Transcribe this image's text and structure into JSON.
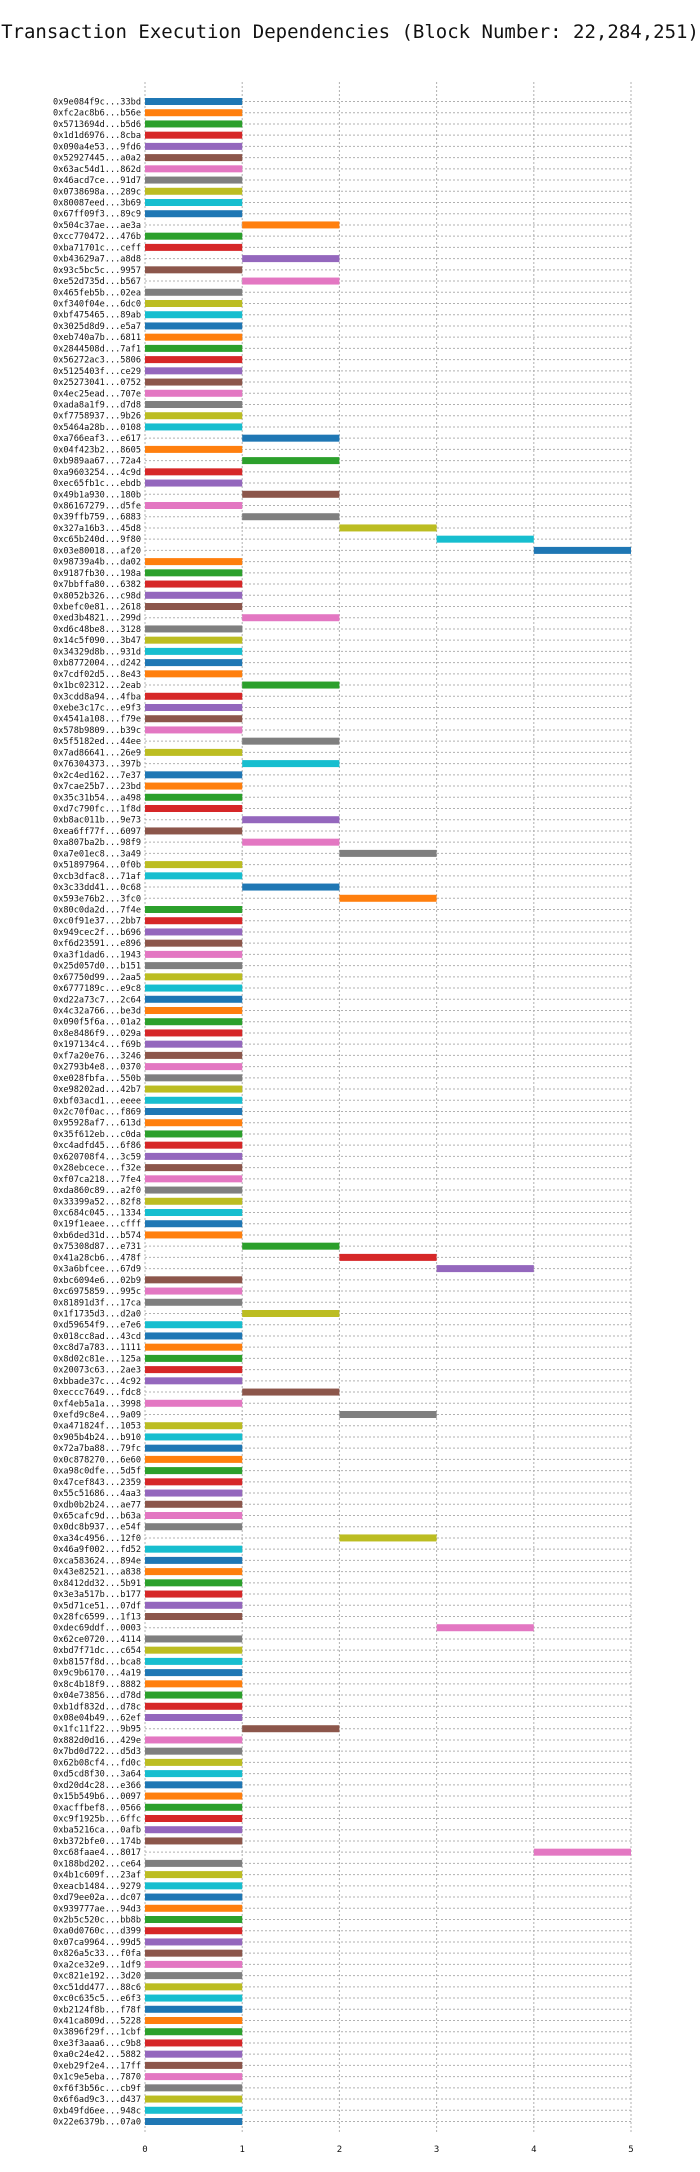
{
  "chart_data": {
    "type": "gantt",
    "title": "Transaction Execution Dependencies (Block Number: 22,284,251)",
    "xlabel": "",
    "ylabel": "",
    "xlim": [
      0,
      5
    ],
    "x_ticks": [
      "0",
      "1",
      "2",
      "3",
      "4",
      "5"
    ],
    "grid": true,
    "palette": [
      "#1f77b4",
      "#ff7f0e",
      "#2ca02c",
      "#d62728",
      "#9467bd",
      "#8c564b",
      "#e377c2",
      "#7f7f7f",
      "#bcbd22",
      "#17becf"
    ],
    "transactions": [
      "0x9e084f9c...33bd",
      "0xfc2ac8b6...b56e",
      "0x5713694d...b5d6",
      "0x1d1d6976...8cba",
      "0x090a4e53...9fd6",
      "0x52927445...a0a2",
      "0x63ac54d1...862d",
      "0x46acd7ce...91d7",
      "0x0738698a...289c",
      "0x80087eed...3b69",
      "0x67ff09f3...89c9",
      "0x504c37ae...ae3a",
      "0xcc770472...476b",
      "0xba71701c...ceff",
      "0xb43629a7...a8d8",
      "0x93c5bc5c...9957",
      "0xe52d735d...b567",
      "0x465feb5b...02ea",
      "0xf340f04e...6dc0",
      "0xbf475465...89ab",
      "0x3025d8d9...e5a7",
      "0xeb740a7b...6811",
      "0x2844508d...7af1",
      "0x56272ac3...5806",
      "0x5125403f...ce29",
      "0x25273041...0752",
      "0x4ec25ead...707e",
      "0xada8a1f9...d7d8",
      "0xf7758937...9b26",
      "0x5464a28b...0108",
      "0xa766eaf3...e617",
      "0x04f423b2...8605",
      "0xb989aa67...72a4",
      "0xa9603254...4c9d",
      "0xec65fb1c...ebdb",
      "0x49b1a930...180b",
      "0x86167279...d5fe",
      "0x39ffb759...6883",
      "0x327a16b3...45d8",
      "0xc65b240d...9f80",
      "0x03e80018...af20",
      "0x98739a4b...da02",
      "0x9187fb30...198a",
      "0x7bbffa80...6382",
      "0x8052b326...c98d",
      "0xbefc0e81...2618",
      "0xed3b4821...299d",
      "0xd6c48be8...3128",
      "0x14c5f090...3b47",
      "0x34329d8b...931d",
      "0xb8772004...d242",
      "0x7cdf02d5...8e43",
      "0x1bc02312...2eab",
      "0x3cdd8a94...4fba",
      "0xebe3c17c...e9f3",
      "0x4541a108...f79e",
      "0x578b9809...b39c",
      "0x5f5182ed...44ee",
      "0x7ad86641...26e9",
      "0x76304373...397b",
      "0x2c4ed162...7e37",
      "0x7cae25b7...23bd",
      "0x35c31b54...a498",
      "0xd7c790fc...1f8d",
      "0xb8ac011b...9e73",
      "0xea6ff77f...6097",
      "0xa807ba2b...98f9",
      "0xa7e01ec8...3a49",
      "0x51897964...0f0b",
      "0xcb3dfac8...71af",
      "0x3c33dd41...0c68",
      "0x593e76b2...3fc0",
      "0x80c0da2d...7f4e",
      "0xc0f91e37...2bb7",
      "0x949cec2f...b696",
      "0xf6d23591...e896",
      "0xa3f1dad6...1943",
      "0x25d057d0...b151",
      "0x67750d99...2aa5",
      "0x6777189c...e9c8",
      "0xd22a73c7...2c64",
      "0x4c32a766...be3d",
      "0x090f5f6a...01a2",
      "0x8e8486f9...029a",
      "0x197134c4...f69b",
      "0xf7a20e76...3246",
      "0x2793b4e8...0370",
      "0xe028fbfa...550b",
      "0xe98202ad...42b7",
      "0xbf03acd1...eeee",
      "0x2c70f0ac...f869",
      "0x95928af7...613d",
      "0x35f612eb...c0da",
      "0xc4adfd45...6f86",
      "0x620708f4...3c59",
      "0x28ebcece...f32e",
      "0xf07ca218...7fe4",
      "0xda860c89...a2f0",
      "0x33399a52...82f8",
      "0xc684c045...1334",
      "0x19f1eaee...cfff",
      "0xb6ded31d...b574",
      "0x75308d87...e731",
      "0x41a28cb6...478f",
      "0x3a6bfcee...67d9",
      "0xbc6094e6...02b9",
      "0xc6975859...995c",
      "0x81891d3f...17ca",
      "0x1f1735d3...d2a0",
      "0xd59654f9...e7e6",
      "0x018cc8ad...43cd",
      "0xc8d7a783...1111",
      "0x8d02c81e...125a",
      "0x20073c63...2ae3",
      "0xbbade37c...4c92",
      "0xeccc7649...fdc8",
      "0xf4eb5a1a...3998",
      "0xefd9c8e4...9a09",
      "0xa471824f...1053",
      "0x905b4b24...b910",
      "0x72a7ba88...79fc",
      "0x0c878270...6e60",
      "0xa98c0dfe...5d5f",
      "0x47cef843...2359",
      "0x55c51686...4aa3",
      "0xdb0b2b24...ae77",
      "0x65cafc9d...b63a",
      "0x0dc8b937...e54f",
      "0xa34c4956...12f0",
      "0x46a9f002...fd52",
      "0xca583624...894e",
      "0x43e82521...a838",
      "0x8412dd32...5b91",
      "0x3e3a517b...b177",
      "0x5d71ce51...07df",
      "0x28fc6599...1f13",
      "0xdec69ddf...0003",
      "0x62ce0720...4114",
      "0xbd7f71dc...c654",
      "0xb8157f8d...bca8",
      "0x9c9b6170...4a19",
      "0x8c4b18f9...8882",
      "0x04e73856...d78d",
      "0xb1df832d...d78c",
      "0x08e04b49...62ef",
      "0x1fc11f22...9b95",
      "0x882d0d16...429e",
      "0x7bd0d722...d5d3",
      "0x62b08cf4...fd0c",
      "0xd5cd8f30...3a64",
      "0xd20d4c28...e366",
      "0x15b549b6...0097",
      "0xacffbef8...0566",
      "0xc9f1925b...6ffc",
      "0xba5216ca...0afb",
      "0xb372bfe0...174b",
      "0xc68faae4...8017",
      "0x188bd202...ce64",
      "0x4b1c609f...23af",
      "0xeacb1484...9279",
      "0xd79ee02a...dc07",
      "0x939777ae...94d3",
      "0x2b5c520c...bb8b",
      "0xa0d0760c...d399",
      "0x07ca9964...99d5",
      "0x826a5c33...f0fa",
      "0xa2ce32e9...1df9",
      "0xc821e192...3d20",
      "0xc51dd477...88c6",
      "0xc0c635c5...e6f3",
      "0xb2124f8b...f78f",
      "0x41ca809d...5228",
      "0x3896f29f...1cbf",
      "0xe3f3aaa6...c9b8",
      "0xa0c24e42...5882",
      "0xeb29f2e4...17ff",
      "0x1c9e5eba...7870",
      "0xf6f3b56c...cb9f",
      "0x6f6ad9c3...d437",
      "0xb49fd6ee...948c",
      "0x22e6379b...07a0"
    ],
    "starts": [
      0,
      0,
      0,
      0,
      0,
      0,
      0,
      0,
      0,
      0,
      0,
      1,
      0,
      0,
      1,
      0,
      1,
      0,
      0,
      0,
      0,
      0,
      0,
      0,
      0,
      0,
      0,
      0,
      0,
      0,
      1,
      0,
      1,
      0,
      0,
      1,
      0,
      1,
      2,
      3,
      4,
      0,
      0,
      0,
      0,
      0,
      1,
      0,
      0,
      0,
      0,
      0,
      1,
      0,
      0,
      0,
      0,
      1,
      0,
      1,
      0,
      0,
      0,
      0,
      1,
      0,
      1,
      2,
      0,
      0,
      1,
      2,
      0,
      0,
      0,
      0,
      0,
      0,
      0,
      0,
      0,
      0,
      0,
      0,
      0,
      0,
      0,
      0,
      0,
      0,
      0,
      0,
      0,
      0,
      0,
      0,
      0,
      0,
      0,
      0,
      0,
      0,
      1,
      2,
      3,
      0,
      0,
      0,
      1,
      0,
      0,
      0,
      0,
      0,
      0,
      1,
      0,
      2,
      0,
      0,
      0,
      0,
      0,
      0,
      0,
      0,
      0,
      0,
      2,
      0,
      0,
      0,
      0,
      0,
      0,
      0,
      3,
      0,
      0,
      0,
      0,
      0,
      0,
      0,
      0,
      1,
      0,
      0,
      0,
      0,
      0,
      0,
      0,
      0,
      0,
      0,
      4,
      0,
      0,
      0,
      0,
      0,
      0,
      0,
      0,
      0,
      0,
      0,
      0,
      0,
      0,
      0,
      0,
      0,
      0,
      0,
      0,
      0,
      0,
      0,
      0
    ],
    "durations": [
      1,
      1,
      1,
      1,
      1,
      1,
      1,
      1,
      1,
      1,
      1,
      1,
      1,
      1,
      1,
      1,
      1,
      1,
      1,
      1,
      1,
      1,
      1,
      1,
      1,
      1,
      1,
      1,
      1,
      1,
      1,
      1,
      1,
      1,
      1,
      1,
      1,
      1,
      1,
      1,
      1,
      1,
      1,
      1,
      1,
      1,
      1,
      1,
      1,
      1,
      1,
      1,
      1,
      1,
      1,
      1,
      1,
      1,
      1,
      1,
      1,
      1,
      1,
      1,
      1,
      1,
      1,
      1,
      1,
      1,
      1,
      1,
      1,
      1,
      1,
      1,
      1,
      1,
      1,
      1,
      1,
      1,
      1,
      1,
      1,
      1,
      1,
      1,
      1,
      1,
      1,
      1,
      1,
      1,
      1,
      1,
      1,
      1,
      1,
      1,
      1,
      1,
      1,
      1,
      1,
      1,
      1,
      1,
      1,
      1,
      1,
      1,
      1,
      1,
      1,
      1,
      1,
      1,
      1,
      1,
      1,
      1,
      1,
      1,
      1,
      1,
      1,
      1,
      1,
      1,
      1,
      1,
      1,
      1,
      1,
      1,
      1,
      1,
      1,
      1,
      1,
      1,
      1,
      1,
      1,
      1,
      1,
      1,
      1,
      1,
      1,
      1,
      1,
      1,
      1,
      1,
      1,
      1,
      1,
      1,
      1,
      1,
      1,
      1,
      1,
      1,
      1,
      1,
      1,
      1,
      1,
      1,
      1,
      1,
      1,
      1,
      1,
      1,
      1,
      1,
      1,
      1,
      1,
      1,
      1
    ]
  }
}
